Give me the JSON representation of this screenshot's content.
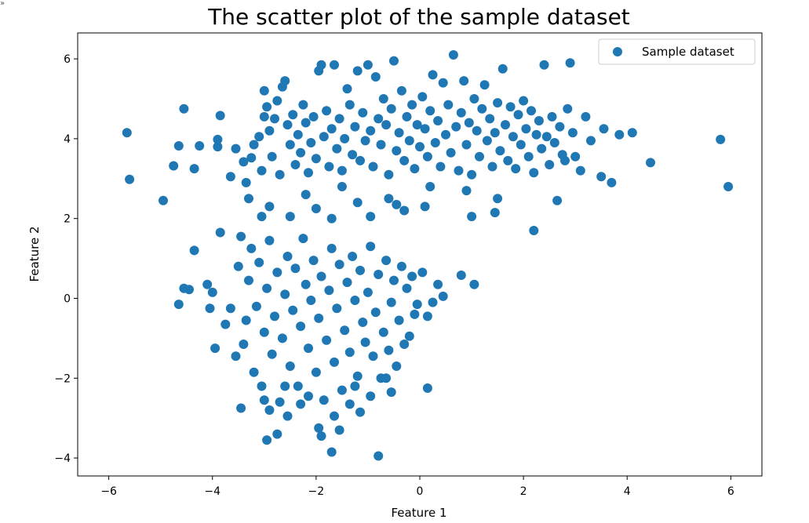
{
  "corner_mark": "»",
  "chart_data": {
    "type": "scatter",
    "title": "The scatter plot of the sample dataset",
    "xlabel": "Feature 1",
    "ylabel": "Feature 2",
    "xlim": [
      -6.6,
      6.6
    ],
    "ylim": [
      -4.45,
      6.65
    ],
    "xticks": [
      -6,
      -4,
      -2,
      0,
      2,
      4,
      6
    ],
    "yticks": [
      -4,
      -2,
      0,
      2,
      4,
      6
    ],
    "xtick_labels": [
      "−6",
      "−4",
      "−2",
      "0",
      "2",
      "4",
      "6"
    ],
    "ytick_labels": [
      "−4",
      "−2",
      "0",
      "2",
      "4",
      "6"
    ],
    "grid": false,
    "legend_position": "top-right",
    "marker_color": "#1f77b4",
    "series": [
      {
        "name": "Sample dataset",
        "points": [
          [
            -5.65,
            4.15
          ],
          [
            -5.6,
            2.98
          ],
          [
            -4.95,
            2.45
          ],
          [
            -4.75,
            3.32
          ],
          [
            -4.65,
            3.82
          ],
          [
            -4.55,
            4.75
          ],
          [
            -4.35,
            3.25
          ],
          [
            -4.25,
            3.82
          ],
          [
            -3.9,
            3.8
          ],
          [
            -3.9,
            3.98
          ],
          [
            -3.85,
            4.58
          ],
          [
            -3.65,
            3.05
          ],
          [
            -3.55,
            3.75
          ],
          [
            -3.4,
            3.42
          ],
          [
            -3.35,
            2.9
          ],
          [
            -3.3,
            2.5
          ],
          [
            -3.25,
            3.52
          ],
          [
            -3.2,
            3.85
          ],
          [
            -3.1,
            4.05
          ],
          [
            -3.05,
            3.2
          ],
          [
            -3.0,
            4.55
          ],
          [
            -3.0,
            5.2
          ],
          [
            -2.95,
            4.8
          ],
          [
            -2.9,
            4.2
          ],
          [
            -2.85,
            3.55
          ],
          [
            -2.8,
            4.5
          ],
          [
            -2.75,
            4.95
          ],
          [
            -2.7,
            3.1
          ],
          [
            -2.65,
            5.3
          ],
          [
            -2.6,
            5.45
          ],
          [
            -2.55,
            4.35
          ],
          [
            -2.5,
            3.85
          ],
          [
            -2.45,
            4.6
          ],
          [
            -2.4,
            3.35
          ],
          [
            -2.35,
            4.1
          ],
          [
            -2.3,
            3.65
          ],
          [
            -2.25,
            4.85
          ],
          [
            -2.2,
            4.4
          ],
          [
            -2.15,
            3.15
          ],
          [
            -2.1,
            3.9
          ],
          [
            -2.05,
            4.55
          ],
          [
            -2.0,
            3.5
          ],
          [
            -1.95,
            5.7
          ],
          [
            -1.9,
            5.85
          ],
          [
            -1.85,
            4.05
          ],
          [
            -1.8,
            4.7
          ],
          [
            -1.75,
            3.3
          ],
          [
            -1.7,
            4.25
          ],
          [
            -1.65,
            5.85
          ],
          [
            -1.6,
            3.75
          ],
          [
            -1.55,
            4.5
          ],
          [
            -1.5,
            3.2
          ],
          [
            -1.45,
            4.0
          ],
          [
            -1.4,
            5.25
          ],
          [
            -1.35,
            4.85
          ],
          [
            -1.3,
            3.6
          ],
          [
            -1.25,
            4.3
          ],
          [
            -1.2,
            5.7
          ],
          [
            -1.15,
            3.45
          ],
          [
            -1.1,
            4.65
          ],
          [
            -1.05,
            3.95
          ],
          [
            -1.0,
            5.85
          ],
          [
            -0.95,
            4.2
          ],
          [
            -0.9,
            3.3
          ],
          [
            -0.85,
            5.55
          ],
          [
            -0.8,
            4.5
          ],
          [
            -0.75,
            3.85
          ],
          [
            -0.7,
            5.0
          ],
          [
            -0.65,
            4.35
          ],
          [
            -0.6,
            3.1
          ],
          [
            -0.55,
            4.75
          ],
          [
            -0.5,
            5.95
          ],
          [
            -0.45,
            3.7
          ],
          [
            -0.4,
            4.15
          ],
          [
            -0.35,
            5.2
          ],
          [
            -0.3,
            3.45
          ],
          [
            -0.25,
            4.55
          ],
          [
            -0.2,
            3.95
          ],
          [
            -0.15,
            4.85
          ],
          [
            -0.1,
            3.25
          ],
          [
            -0.05,
            4.35
          ],
          [
            0.0,
            3.8
          ],
          [
            0.05,
            5.05
          ],
          [
            0.1,
            4.25
          ],
          [
            0.15,
            3.55
          ],
          [
            0.2,
            4.7
          ],
          [
            0.25,
            5.6
          ],
          [
            0.3,
            3.9
          ],
          [
            0.35,
            4.45
          ],
          [
            0.4,
            3.3
          ],
          [
            0.45,
            5.4
          ],
          [
            0.5,
            4.1
          ],
          [
            0.55,
            4.85
          ],
          [
            0.6,
            3.65
          ],
          [
            0.65,
            6.1
          ],
          [
            0.7,
            4.3
          ],
          [
            0.75,
            3.2
          ],
          [
            0.8,
            4.65
          ],
          [
            0.85,
            5.45
          ],
          [
            0.9,
            3.85
          ],
          [
            0.95,
            4.4
          ],
          [
            1.0,
            3.1
          ],
          [
            1.05,
            5.0
          ],
          [
            1.1,
            4.2
          ],
          [
            1.15,
            3.55
          ],
          [
            1.2,
            4.75
          ],
          [
            1.25,
            5.35
          ],
          [
            1.3,
            3.95
          ],
          [
            1.35,
            4.5
          ],
          [
            1.4,
            3.3
          ],
          [
            1.45,
            4.15
          ],
          [
            1.5,
            4.9
          ],
          [
            1.55,
            3.7
          ],
          [
            1.6,
            5.75
          ],
          [
            1.65,
            4.35
          ],
          [
            1.7,
            3.45
          ],
          [
            1.75,
            4.8
          ],
          [
            1.8,
            4.05
          ],
          [
            1.85,
            3.25
          ],
          [
            1.9,
            4.6
          ],
          [
            1.95,
            3.85
          ],
          [
            2.0,
            4.95
          ],
          [
            2.05,
            4.25
          ],
          [
            2.1,
            3.55
          ],
          [
            2.15,
            4.7
          ],
          [
            2.2,
            3.15
          ],
          [
            2.25,
            4.1
          ],
          [
            2.3,
            4.45
          ],
          [
            2.35,
            3.75
          ],
          [
            2.4,
            5.85
          ],
          [
            2.45,
            4.05
          ],
          [
            2.5,
            3.35
          ],
          [
            2.55,
            4.55
          ],
          [
            2.6,
            3.9
          ],
          [
            2.65,
            2.45
          ],
          [
            2.7,
            4.3
          ],
          [
            2.75,
            3.6
          ],
          [
            2.8,
            3.45
          ],
          [
            2.85,
            4.75
          ],
          [
            2.9,
            5.9
          ],
          [
            2.95,
            4.15
          ],
          [
            3.0,
            3.55
          ],
          [
            3.1,
            3.2
          ],
          [
            3.2,
            4.55
          ],
          [
            3.3,
            3.95
          ],
          [
            3.5,
            3.05
          ],
          [
            3.55,
            4.25
          ],
          [
            3.7,
            2.9
          ],
          [
            3.85,
            4.1
          ],
          [
            4.1,
            4.15
          ],
          [
            4.45,
            3.4
          ],
          [
            5.8,
            3.98
          ],
          [
            5.95,
            2.8
          ],
          [
            -0.3,
            2.2
          ],
          [
            0.1,
            2.3
          ],
          [
            -0.6,
            2.5
          ],
          [
            0.2,
            2.8
          ],
          [
            0.9,
            2.7
          ],
          [
            1.5,
            2.5
          ],
          [
            2.2,
            1.7
          ],
          [
            1.0,
            2.05
          ],
          [
            1.45,
            2.15
          ],
          [
            -1.5,
            2.8
          ],
          [
            -2.2,
            2.6
          ],
          [
            -2.0,
            2.25
          ],
          [
            -1.7,
            2.0
          ],
          [
            -1.2,
            2.4
          ],
          [
            -0.95,
            2.05
          ],
          [
            -0.45,
            2.35
          ],
          [
            -2.5,
            2.05
          ],
          [
            -2.9,
            2.3
          ],
          [
            -3.05,
            2.05
          ],
          [
            -4.65,
            -0.15
          ],
          [
            -4.55,
            0.25
          ],
          [
            -4.45,
            0.22
          ],
          [
            -4.35,
            1.2
          ],
          [
            -4.1,
            0.35
          ],
          [
            -4.05,
            -0.25
          ],
          [
            -4.0,
            0.15
          ],
          [
            -3.95,
            -1.25
          ],
          [
            -3.85,
            1.65
          ],
          [
            -3.75,
            -0.65
          ],
          [
            -3.65,
            -0.25
          ],
          [
            -3.55,
            -1.45
          ],
          [
            -3.5,
            0.8
          ],
          [
            -3.45,
            1.55
          ],
          [
            -3.4,
            -1.15
          ],
          [
            -3.35,
            -0.55
          ],
          [
            -3.3,
            0.45
          ],
          [
            -3.25,
            1.25
          ],
          [
            -3.2,
            -1.85
          ],
          [
            -3.15,
            -0.2
          ],
          [
            -3.1,
            0.9
          ],
          [
            -3.05,
            -2.2
          ],
          [
            -3.0,
            -0.85
          ],
          [
            -2.95,
            0.25
          ],
          [
            -2.9,
            1.45
          ],
          [
            -2.85,
            -1.4
          ],
          [
            -2.8,
            -0.45
          ],
          [
            -2.75,
            0.65
          ],
          [
            -2.7,
            -2.6
          ],
          [
            -2.65,
            -1.0
          ],
          [
            -2.6,
            0.1
          ],
          [
            -2.55,
            1.05
          ],
          [
            -2.5,
            -1.7
          ],
          [
            -2.45,
            -0.3
          ],
          [
            -2.4,
            0.75
          ],
          [
            -2.35,
            -2.2
          ],
          [
            -2.3,
            -0.7
          ],
          [
            -2.25,
            1.5
          ],
          [
            -2.2,
            0.35
          ],
          [
            -2.15,
            -1.25
          ],
          [
            -2.1,
            -0.05
          ],
          [
            -2.05,
            0.95
          ],
          [
            -2.0,
            -1.85
          ],
          [
            -1.95,
            -0.5
          ],
          [
            -1.9,
            0.55
          ],
          [
            -1.85,
            -2.55
          ],
          [
            -1.8,
            -1.05
          ],
          [
            -1.75,
            0.2
          ],
          [
            -1.7,
            1.25
          ],
          [
            -1.65,
            -1.6
          ],
          [
            -1.6,
            -0.25
          ],
          [
            -1.55,
            0.85
          ],
          [
            -1.5,
            -2.3
          ],
          [
            -1.45,
            -0.8
          ],
          [
            -1.4,
            0.4
          ],
          [
            -1.35,
            -1.35
          ],
          [
            -1.3,
            1.05
          ],
          [
            -1.25,
            -0.05
          ],
          [
            -1.2,
            -1.95
          ],
          [
            -1.15,
            0.7
          ],
          [
            -1.1,
            -0.6
          ],
          [
            -1.05,
            -1.1
          ],
          [
            -1.0,
            0.15
          ],
          [
            -0.95,
            1.3
          ],
          [
            -0.9,
            -1.45
          ],
          [
            -0.85,
            -0.35
          ],
          [
            -0.8,
            0.6
          ],
          [
            -0.75,
            -2.0
          ],
          [
            -0.7,
            -0.85
          ],
          [
            -0.65,
            0.95
          ],
          [
            -0.6,
            -1.3
          ],
          [
            -0.55,
            -0.1
          ],
          [
            -0.5,
            0.45
          ],
          [
            -0.45,
            -1.7
          ],
          [
            -0.4,
            -0.55
          ],
          [
            -0.35,
            0.8
          ],
          [
            -0.3,
            -1.15
          ],
          [
            -0.25,
            0.25
          ],
          [
            -0.2,
            -0.95
          ],
          [
            -0.15,
            0.55
          ],
          [
            -0.1,
            -0.4
          ],
          [
            -0.05,
            -0.15
          ],
          [
            0.05,
            0.65
          ],
          [
            0.15,
            -0.45
          ],
          [
            0.25,
            -0.1
          ],
          [
            0.35,
            0.35
          ],
          [
            0.45,
            0.05
          ],
          [
            0.15,
            -2.25
          ],
          [
            0.8,
            0.58
          ],
          [
            1.05,
            0.35
          ],
          [
            -3.45,
            -2.75
          ],
          [
            -3.0,
            -2.55
          ],
          [
            -2.95,
            -3.55
          ],
          [
            -2.75,
            -3.4
          ],
          [
            -2.55,
            -2.95
          ],
          [
            -2.3,
            -2.65
          ],
          [
            -1.95,
            -3.25
          ],
          [
            -1.9,
            -3.45
          ],
          [
            -1.7,
            -3.85
          ],
          [
            -1.65,
            -2.95
          ],
          [
            -1.55,
            -3.3
          ],
          [
            -1.35,
            -2.65
          ],
          [
            -1.15,
            -2.85
          ],
          [
            -0.95,
            -2.45
          ],
          [
            -0.8,
            -3.95
          ],
          [
            -0.55,
            -2.35
          ],
          [
            -2.9,
            -2.8
          ],
          [
            -2.6,
            -2.2
          ],
          [
            -2.15,
            -2.45
          ],
          [
            -1.25,
            -2.2
          ],
          [
            -0.65,
            -2.0
          ]
        ]
      }
    ]
  }
}
